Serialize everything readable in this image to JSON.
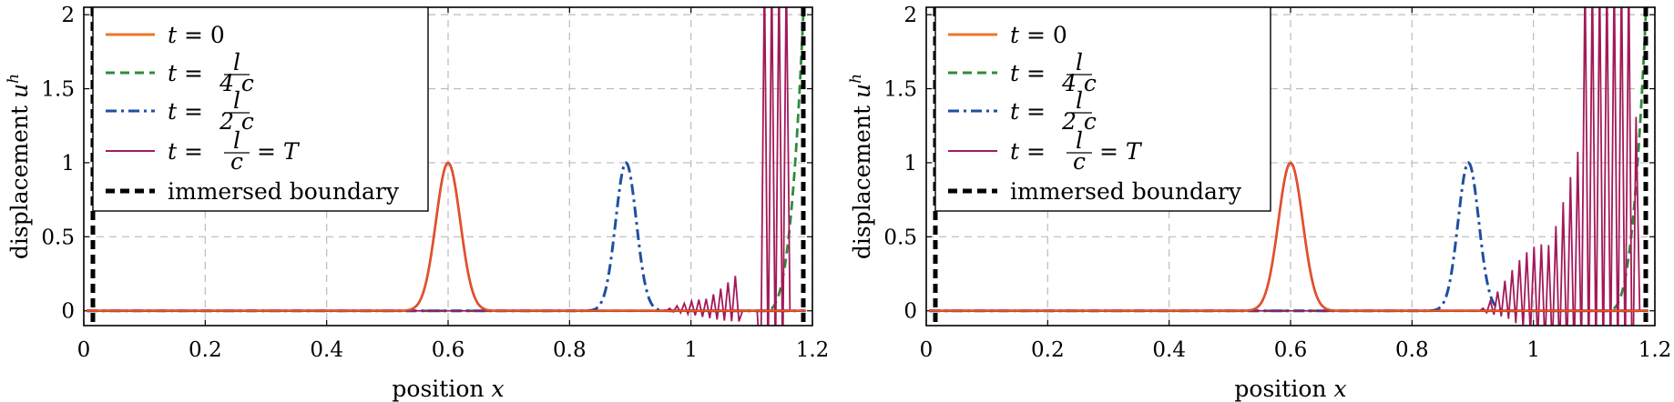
{
  "chart_data": [
    {
      "type": "line",
      "xlabel": "position",
      "xlabel_var": "x",
      "ylabel": "displacement",
      "ylabel_var": "u",
      "ylabel_sup": "h",
      "xlim": [
        0,
        1.2
      ],
      "ylim": [
        -0.1,
        2.05
      ],
      "xticks": [
        0,
        0.2,
        0.4,
        0.6,
        0.8,
        1,
        1.2
      ],
      "xtick_labels": [
        "0",
        "0.2",
        "0.4",
        "0.6",
        "0.8",
        "1",
        "1.2"
      ],
      "yticks": [
        0,
        0.5,
        1,
        1.5,
        2
      ],
      "ytick_labels": [
        "0",
        "0.5",
        "1",
        "1.5",
        "2"
      ],
      "grid": true,
      "legend_position": "top-left",
      "series": [
        {
          "name": "t = 0",
          "color": "#e8782a",
          "style": "solid"
        },
        {
          "name": "t = l/(4c)",
          "color": "#2e8b3a",
          "style": "dashed"
        },
        {
          "name": "t = l/(2c)",
          "color": "#1f4fa0",
          "style": "dashdot"
        },
        {
          "name": "t = l/c = T",
          "color": "#a3195b",
          "style": "solid-thin"
        },
        {
          "name": "immersed boundary",
          "color": "#000000",
          "style": "thick-dashed"
        }
      ],
      "boundaries": [
        0.015,
        1.185
      ],
      "pulse_initial": {
        "center": 0.6,
        "amplitude": 1,
        "width": 0.02
      },
      "pulse_half": {
        "center": 0.893,
        "amplitude": 1,
        "width": 0.017
      },
      "pulse_quarter_front": {
        "center": 1.185,
        "amplitude": 2.0
      },
      "oscillation": {
        "start": 0.95,
        "end": 1.08,
        "max_amplitude": 0.27,
        "spikes_end": [
          1.11,
          1.16
        ]
      }
    },
    {
      "type": "line",
      "xlabel": "position",
      "xlabel_var": "x",
      "ylabel": "displacement",
      "ylabel_var": "u",
      "ylabel_sup": "h",
      "xlim": [
        0,
        1.2
      ],
      "ylim": [
        -0.1,
        2.05
      ],
      "xticks": [
        0,
        0.2,
        0.4,
        0.6,
        0.8,
        1,
        1.2
      ],
      "xtick_labels": [
        "0",
        "0.2",
        "0.4",
        "0.6",
        "0.8",
        "1",
        "1.2"
      ],
      "yticks": [
        0,
        0.5,
        1,
        1.5,
        2
      ],
      "ytick_labels": [
        "0",
        "0.5",
        "1",
        "1.5",
        "2"
      ],
      "grid": true,
      "legend_position": "top-left",
      "series": [
        {
          "name": "t = 0",
          "color": "#e8782a",
          "style": "solid"
        },
        {
          "name": "t = l/(4c)",
          "color": "#2e8b3a",
          "style": "dashed"
        },
        {
          "name": "t = l/(2c)",
          "color": "#1f4fa0",
          "style": "dashdot"
        },
        {
          "name": "t = l/c = T",
          "color": "#a3195b",
          "style": "solid-thin"
        },
        {
          "name": "immersed boundary",
          "color": "#000000",
          "style": "thick-dashed"
        }
      ],
      "boundaries": [
        0.015,
        1.185
      ],
      "pulse_initial": {
        "center": 0.6,
        "amplitude": 1,
        "width": 0.02
      },
      "pulse_half": {
        "center": 0.893,
        "amplitude": 1,
        "width": 0.017
      },
      "pulse_quarter_front": {
        "center": 1.185,
        "amplitude": 2.0
      },
      "oscillation": {
        "start": 0.91,
        "end": 1.17,
        "max_amplitude": 2.1,
        "spikes_end": [
          1.08,
          1.16
        ]
      }
    }
  ],
  "legend": {
    "t_label": "t",
    "eq": "=",
    "zero": "0",
    "num_l": "l",
    "den_4c": "4 c",
    "den_2c": "2 c",
    "den_c": "c",
    "T": "T",
    "immersed": "immersed boundary"
  }
}
